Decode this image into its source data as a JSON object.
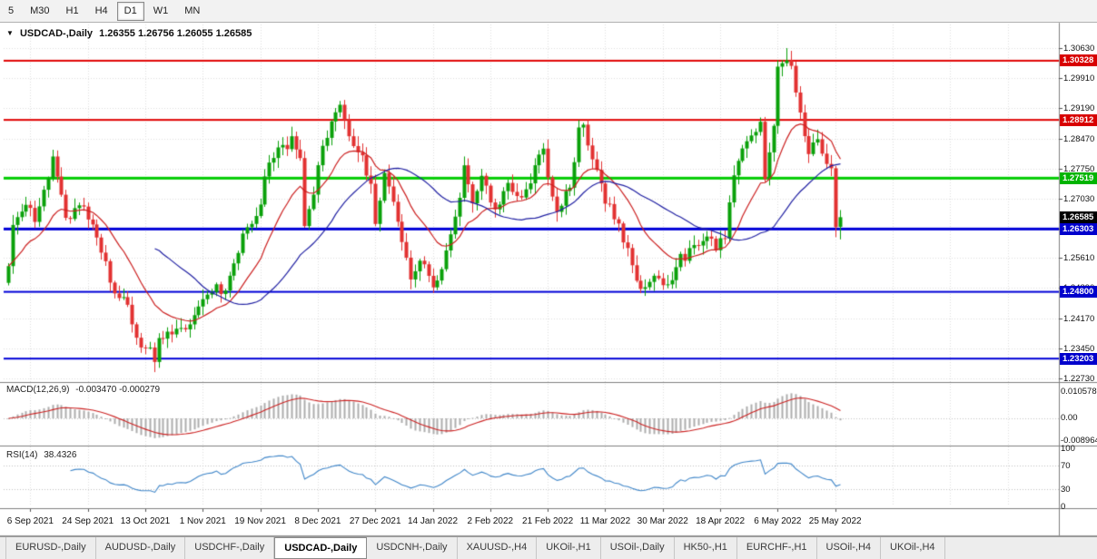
{
  "toolbar": {
    "timeframes": [
      {
        "label": "5"
      },
      {
        "label": "M30"
      },
      {
        "label": "H1"
      },
      {
        "label": "H4"
      },
      {
        "label": "D1",
        "active": true
      },
      {
        "label": "W1"
      },
      {
        "label": "MN"
      }
    ]
  },
  "header": {
    "symbol_title": "USDCAD-,Daily",
    "ohlc_text": "1.26355 1.26756 1.26055 1.26585"
  },
  "chart_data": {
    "type": "candlestick",
    "symbol": "USDCAD-",
    "timeframe": "Daily",
    "current_ohlc": {
      "open": 1.26355,
      "high": 1.26756,
      "low": 1.26055,
      "close": 1.26585
    },
    "num_bars": 189,
    "extremes": {
      "high": 1.3063,
      "low": 1.2288
    },
    "y_axis_labels": [
      "1.30630",
      "1.29910",
      "1.29190",
      "1.28470",
      "1.27750",
      "1.27030",
      "1.26310",
      "1.25610",
      "1.24890",
      "1.24170",
      "1.23450",
      "1.22730"
    ],
    "y_range": [
      1.2273,
      1.3063
    ],
    "price_labels": [
      {
        "text": "1.30328",
        "color": "#d80000"
      },
      {
        "text": "1.28912",
        "color": "#d80000"
      },
      {
        "text": "1.27519",
        "color": "#00b400"
      },
      {
        "text": "1.26585",
        "color": "#000000"
      },
      {
        "text": "1.26303",
        "color": "#0000cc"
      },
      {
        "text": "1.24800",
        "color": "#0000cc"
      },
      {
        "text": "1.23203",
        "color": "#0000cc"
      }
    ],
    "horizontal_levels": [
      {
        "price": 1.30328,
        "color": "#e00000",
        "width": 2
      },
      {
        "price": 1.28912,
        "color": "#e00000",
        "width": 2
      },
      {
        "price": 1.27519,
        "color": "#00cc00",
        "width": 3
      },
      {
        "price": 1.26303,
        "color": "#0000d8",
        "width": 3
      },
      {
        "price": 1.248,
        "color": "#0000d8",
        "width": 2
      },
      {
        "price": 1.23203,
        "color": "#0000d8",
        "width": 2
      }
    ],
    "x_axis_labels": [
      "6 Sep 2021",
      "24 Sep 2021",
      "13 Oct 2021",
      "1 Nov 2021",
      "19 Nov 2021",
      "8 Dec 2021",
      "27 Dec 2021",
      "14 Jan 2022",
      "2 Feb 2022",
      "21 Feb 2022",
      "11 Mar 2022",
      "30 Mar 2022",
      "18 Apr 2022",
      "6 May 2022",
      "25 May 2022"
    ],
    "price_waypoints": [
      [
        0,
        1.253
      ],
      [
        1,
        1.264
      ],
      [
        4,
        1.269
      ],
      [
        6,
        1.266
      ],
      [
        9,
        1.276
      ],
      [
        10,
        1.2815
      ],
      [
        11,
        1.276
      ],
      [
        13,
        1.2655
      ],
      [
        16,
        1.269
      ],
      [
        19,
        1.2645
      ],
      [
        21,
        1.2585
      ],
      [
        24,
        1.2475
      ],
      [
        27,
        1.2455
      ],
      [
        29,
        1.237
      ],
      [
        32,
        1.2335
      ],
      [
        33,
        1.231
      ],
      [
        34,
        1.2365
      ],
      [
        36,
        1.239
      ],
      [
        39,
        1.2385
      ],
      [
        41,
        1.24
      ],
      [
        44,
        1.245
      ],
      [
        47,
        1.25
      ],
      [
        49,
        1.247
      ],
      [
        51,
        1.2555
      ],
      [
        54,
        1.2645
      ],
      [
        56,
        1.2655
      ],
      [
        59,
        1.279
      ],
      [
        61,
        1.2815
      ],
      [
        64,
        1.284
      ],
      [
        66,
        1.2795
      ],
      [
        67,
        1.264
      ],
      [
        69,
        1.2705
      ],
      [
        71,
        1.2835
      ],
      [
        74,
        1.29
      ],
      [
        75,
        1.2935
      ],
      [
        77,
        1.286
      ],
      [
        80,
        1.28
      ],
      [
        82,
        1.2735
      ],
      [
        83,
        1.264
      ],
      [
        85,
        1.276
      ],
      [
        88,
        1.2645
      ],
      [
        91,
        1.2505
      ],
      [
        93,
        1.2555
      ],
      [
        96,
        1.25
      ],
      [
        98,
        1.2525
      ],
      [
        101,
        1.266
      ],
      [
        103,
        1.277
      ],
      [
        105,
        1.27
      ],
      [
        107,
        1.276
      ],
      [
        110,
        1.268
      ],
      [
        113,
        1.2735
      ],
      [
        116,
        1.271
      ],
      [
        118,
        1.275
      ],
      [
        121,
        1.283
      ],
      [
        123,
        1.27
      ],
      [
        124,
        1.2665
      ],
      [
        127,
        1.274
      ],
      [
        129,
        1.2865
      ],
      [
        130,
        1.288
      ],
      [
        132,
        1.279
      ],
      [
        135,
        1.27
      ],
      [
        138,
        1.264
      ],
      [
        141,
        1.255
      ],
      [
        143,
        1.248
      ],
      [
        146,
        1.251
      ],
      [
        149,
        1.249
      ],
      [
        152,
        1.256
      ],
      [
        155,
        1.258
      ],
      [
        158,
        1.261
      ],
      [
        160,
        1.258
      ],
      [
        162,
        1.262
      ],
      [
        164,
        1.275
      ],
      [
        166,
        1.282
      ],
      [
        168,
        1.285
      ],
      [
        170,
        1.289
      ],
      [
        171,
        1.274
      ],
      [
        173,
        1.289
      ],
      [
        174,
        1.301
      ],
      [
        176,
        1.3035
      ],
      [
        177,
        1.3025
      ],
      [
        178,
        1.2945
      ],
      [
        180,
        1.2855
      ],
      [
        181,
        1.2815
      ],
      [
        183,
        1.285
      ],
      [
        184,
        1.281
      ],
      [
        185,
        1.279
      ],
      [
        186,
        1.2785
      ],
      [
        187,
        1.2635
      ],
      [
        188,
        1.26585
      ]
    ],
    "moving_averages": [
      {
        "type": "ema",
        "period": 16,
        "color": "#cc2020"
      },
      {
        "type": "sma",
        "period": 34,
        "color": "#2121a3"
      }
    ],
    "macd": {
      "label": "MACD(12,26,9)",
      "values_text": "-0.003470 -0.000279",
      "params": [
        12,
        26,
        9
      ],
      "current_macd": -0.00347,
      "current_signal": -0.000279,
      "axis_labels": [
        "0.010578",
        "0.00",
        "-0.008964"
      ],
      "axis_range": [
        -0.008964,
        0.010578
      ],
      "histogram_color": "#adadad",
      "signal_color": "#cc2222"
    },
    "rsi": {
      "label": "RSI(14)",
      "value_text": "38.4326",
      "period": 14,
      "current": 38.4326,
      "axis_labels": [
        "100",
        "70",
        "30",
        "0"
      ],
      "levels": [
        70,
        30
      ],
      "range": [
        0,
        100
      ],
      "line_color": "#3f86c9"
    },
    "colors": {
      "up": "#0aa10a",
      "down": "#e23131",
      "grid": "#dedede",
      "separator": "#808080"
    }
  },
  "tabs": [
    {
      "label": "EURUSD-,Daily"
    },
    {
      "label": "AUDUSD-,Daily"
    },
    {
      "label": "USDCHF-,Daily"
    },
    {
      "label": "USDCAD-,Daily",
      "active": true
    },
    {
      "label": "USDCNH-,Daily"
    },
    {
      "label": "XAUUSD-,H4"
    },
    {
      "label": "UKOil-,H1"
    },
    {
      "label": "USOil-,Daily"
    },
    {
      "label": "HK50-,H1"
    },
    {
      "label": "EURCHF-,H1"
    },
    {
      "label": "USOil-,H4"
    },
    {
      "label": "UKOil-,H4"
    }
  ]
}
